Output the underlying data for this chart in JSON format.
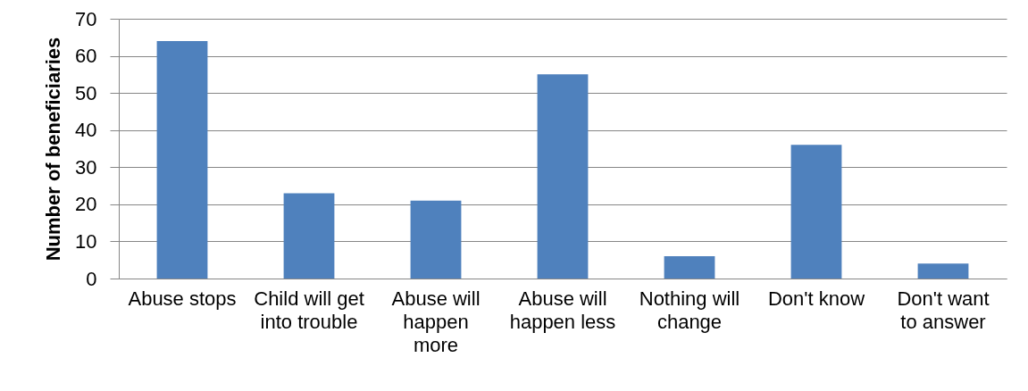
{
  "chart_data": {
    "type": "bar",
    "ylabel": "Number of beneficiaries",
    "categories": [
      "Abuse stops",
      "Child will get into trouble",
      "Abuse will happen more",
      "Abuse will happen less",
      "Nothing will change",
      "Don't know",
      "Don't want to answer"
    ],
    "values": [
      64,
      23,
      21,
      55,
      6,
      36,
      4
    ],
    "color": "#4f81bd",
    "ylim": [
      0,
      70
    ],
    "yticks": [
      0,
      10,
      20,
      30,
      40,
      50,
      60,
      70
    ],
    "grid": "y"
  }
}
